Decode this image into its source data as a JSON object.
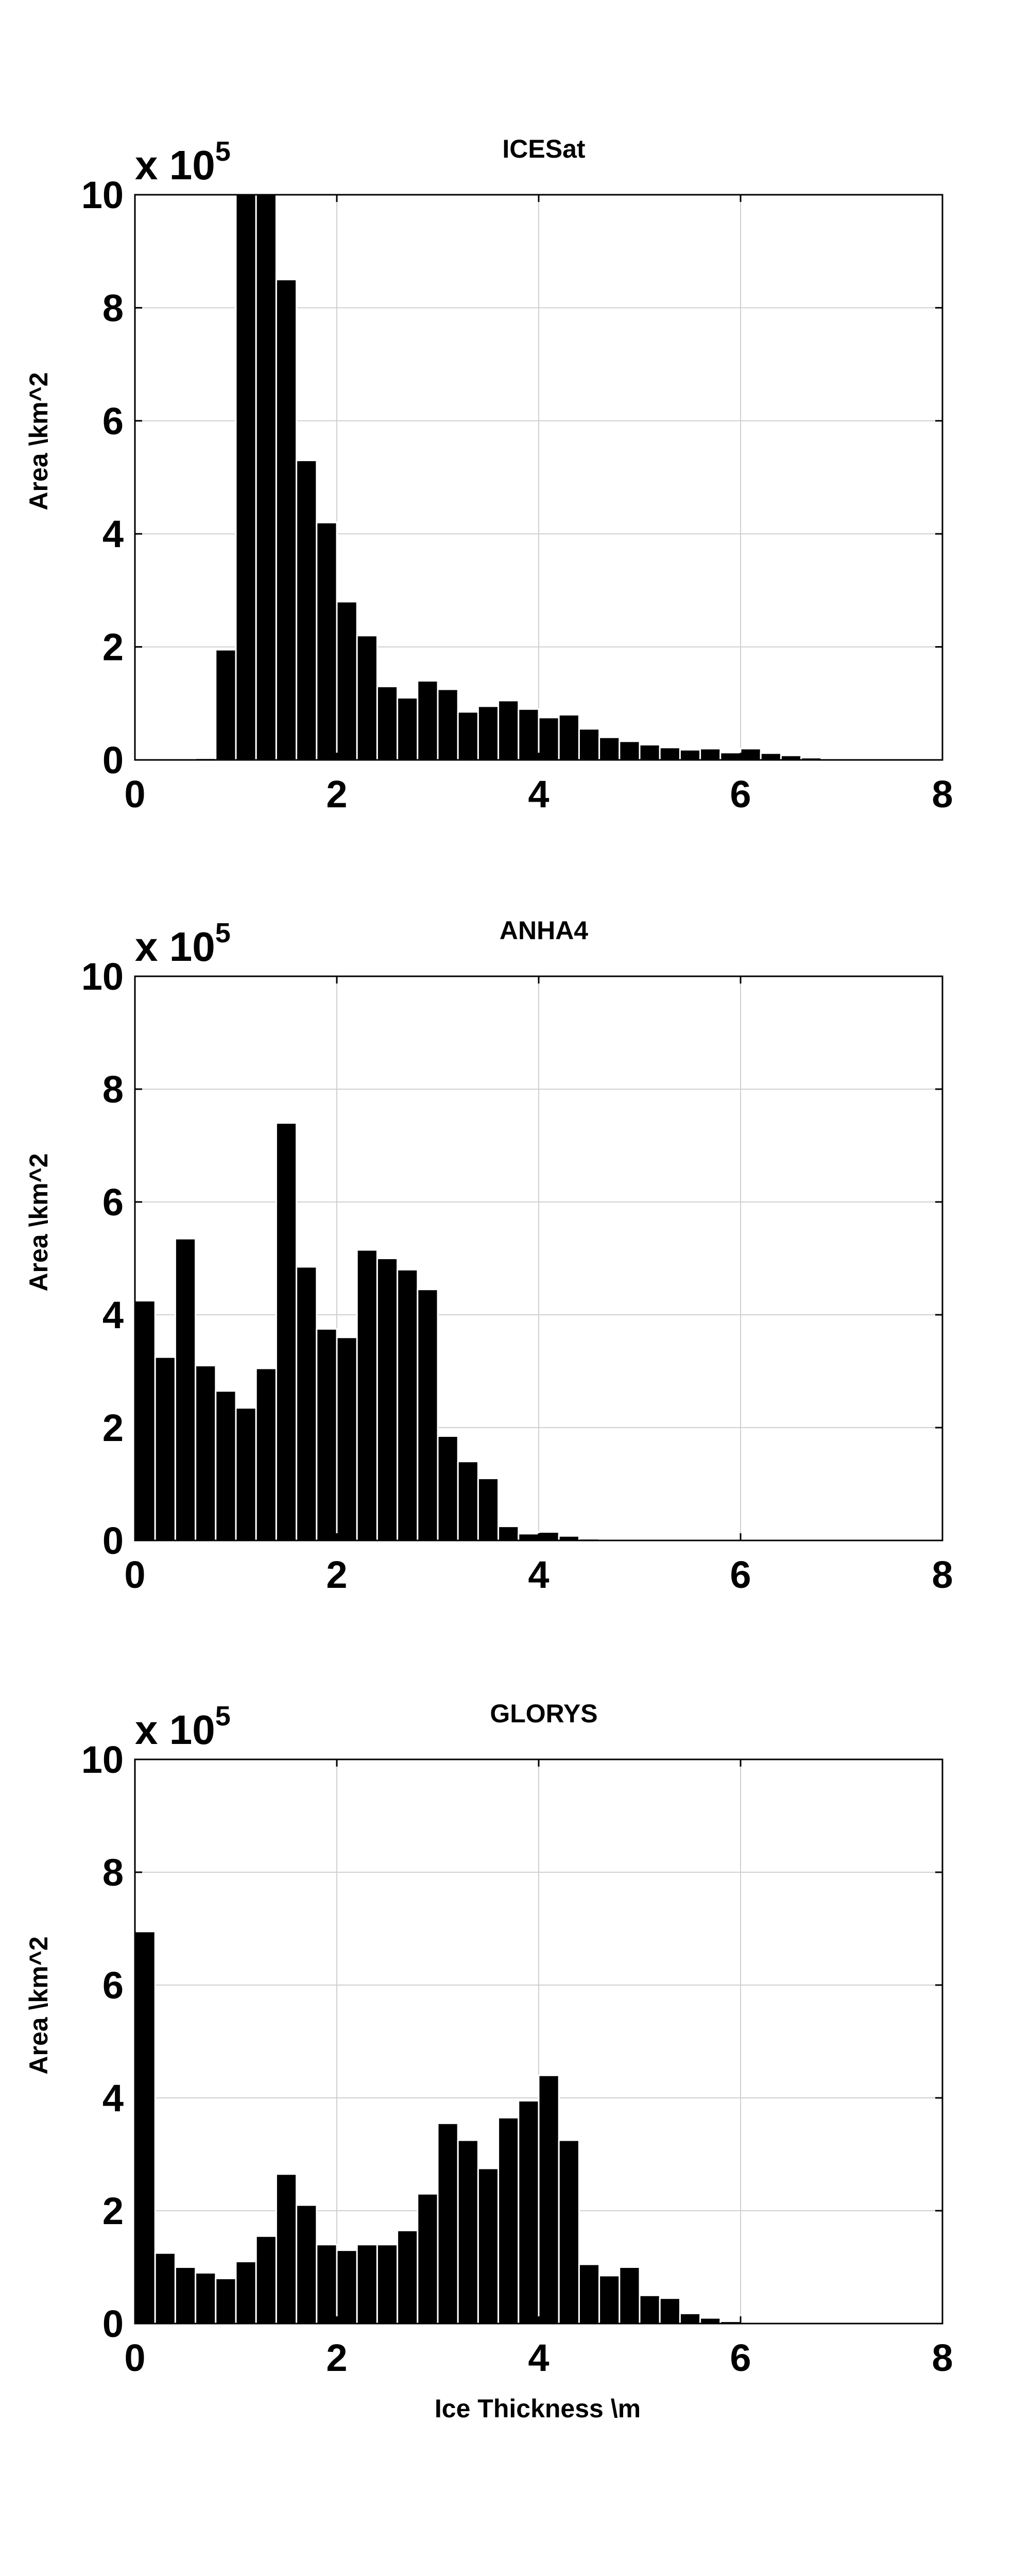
{
  "chart_data": [
    {
      "type": "bar",
      "title": "ICESat",
      "xlabel": "",
      "ylabel": "Area \\km^2",
      "multiplier_text": "x 10",
      "multiplier_exponent": "5",
      "xlim": [
        0,
        8
      ],
      "ylim": [
        0,
        10
      ],
      "xticks": [
        "0",
        "2",
        "4",
        "6",
        "8"
      ],
      "yticks": [
        "0",
        "2",
        "4",
        "6",
        "8",
        "10"
      ],
      "grid": true,
      "bin_width": 0.2,
      "x": [
        0.1,
        0.3,
        0.5,
        0.7,
        0.9,
        1.1,
        1.3,
        1.5,
        1.7,
        1.9,
        2.1,
        2.3,
        2.5,
        2.7,
        2.9,
        3.1,
        3.3,
        3.5,
        3.7,
        3.9,
        4.1,
        4.3,
        4.5,
        4.7,
        4.9,
        5.1,
        5.3,
        5.5,
        5.7,
        5.9,
        6.1,
        6.3,
        6.5,
        6.7,
        6.9,
        7.1,
        7.3,
        7.5,
        7.7,
        7.9
      ],
      "values": [
        0,
        0,
        0,
        0.03,
        1.95,
        10,
        10,
        8.5,
        5.3,
        4.2,
        2.8,
        2.2,
        1.3,
        1.1,
        1.4,
        1.25,
        0.85,
        0.95,
        1.05,
        0.9,
        0.75,
        0.8,
        0.55,
        0.4,
        0.33,
        0.27,
        0.22,
        0.18,
        0.2,
        0.13,
        0.2,
        0.12,
        0.08,
        0.04,
        0.02,
        0.01,
        0,
        0,
        0,
        0
      ]
    },
    {
      "type": "bar",
      "title": "ANHA4",
      "xlabel": "",
      "ylabel": "Area \\km^2",
      "multiplier_text": "x 10",
      "multiplier_exponent": "5",
      "xlim": [
        0,
        8
      ],
      "ylim": [
        0,
        10
      ],
      "xticks": [
        "0",
        "2",
        "4",
        "6",
        "8"
      ],
      "yticks": [
        "0",
        "2",
        "4",
        "6",
        "8",
        "10"
      ],
      "grid": true,
      "bin_width": 0.2,
      "x": [
        0.1,
        0.3,
        0.5,
        0.7,
        0.9,
        1.1,
        1.3,
        1.5,
        1.7,
        1.9,
        2.1,
        2.3,
        2.5,
        2.7,
        2.9,
        3.1,
        3.3,
        3.5,
        3.7,
        3.9,
        4.1,
        4.3,
        4.5,
        4.7,
        4.9,
        5.1,
        5.3,
        5.5,
        5.7,
        5.9,
        6.1,
        6.3,
        6.5,
        6.7,
        6.9,
        7.1,
        7.3,
        7.5,
        7.7,
        7.9
      ],
      "values": [
        4.25,
        3.25,
        5.35,
        3.1,
        2.65,
        2.35,
        3.05,
        7.4,
        4.85,
        3.75,
        3.6,
        5.15,
        5.0,
        4.8,
        4.45,
        1.85,
        1.4,
        1.1,
        0.25,
        0.12,
        0.15,
        0.08,
        0.03,
        0.01,
        0.01,
        0,
        0,
        0,
        0,
        0,
        0,
        0,
        0,
        0,
        0,
        0,
        0,
        0,
        0,
        0
      ]
    },
    {
      "type": "bar",
      "title": "GLORYS",
      "xlabel": "Ice Thickness \\m",
      "ylabel": "Area \\km^2",
      "multiplier_text": "x 10",
      "multiplier_exponent": "5",
      "xlim": [
        0,
        8
      ],
      "ylim": [
        0,
        10
      ],
      "xticks": [
        "0",
        "2",
        "4",
        "6",
        "8"
      ],
      "yticks": [
        "0",
        "2",
        "4",
        "6",
        "8",
        "10"
      ],
      "grid": true,
      "bin_width": 0.2,
      "x": [
        0.1,
        0.3,
        0.5,
        0.7,
        0.9,
        1.1,
        1.3,
        1.5,
        1.7,
        1.9,
        2.1,
        2.3,
        2.5,
        2.7,
        2.9,
        3.1,
        3.3,
        3.5,
        3.7,
        3.9,
        4.1,
        4.3,
        4.5,
        4.7,
        4.9,
        5.1,
        5.3,
        5.5,
        5.7,
        5.9,
        6.1,
        6.3,
        6.5,
        6.7,
        6.9,
        7.1,
        7.3,
        7.5,
        7.7,
        7.9
      ],
      "values": [
        6.95,
        1.25,
        1.0,
        0.9,
        0.8,
        1.1,
        1.55,
        2.65,
        2.1,
        1.4,
        1.3,
        1.4,
        1.4,
        1.65,
        2.3,
        3.55,
        3.25,
        2.75,
        3.65,
        3.95,
        4.4,
        3.25,
        1.05,
        0.85,
        1.0,
        0.5,
        0.45,
        0.18,
        0.1,
        0.04,
        0.02,
        0,
        0,
        0,
        0,
        0,
        0,
        0,
        0,
        0
      ]
    }
  ],
  "colors": {
    "bar_fill": "#000000",
    "bar_edge": "#ffffff",
    "grid": "#d0d0d0",
    "axes": "#000000",
    "background": "#ffffff"
  }
}
